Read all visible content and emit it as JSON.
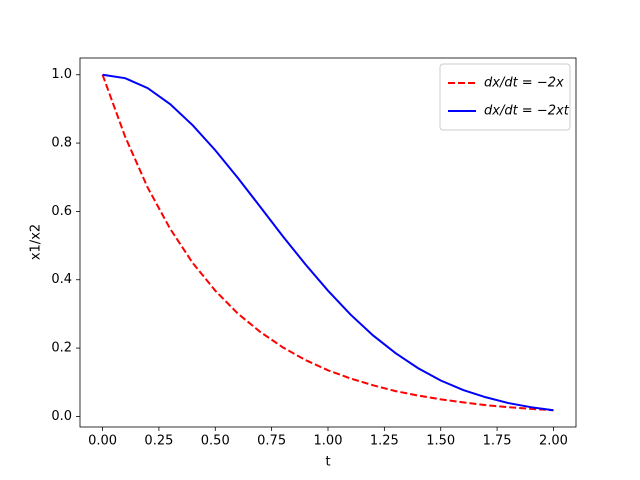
{
  "chart_data": {
    "type": "line",
    "x": [
      0,
      0.1,
      0.2,
      0.3,
      0.4,
      0.5,
      0.6,
      0.7,
      0.8,
      0.9,
      1.0,
      1.1,
      1.2,
      1.3,
      1.4,
      1.5,
      1.6,
      1.7,
      1.8,
      1.9,
      2.0
    ],
    "series": [
      {
        "name": "dx/dt = −2x",
        "color": "#ff0000",
        "dash": true,
        "values": [
          1,
          0.819,
          0.67,
          0.549,
          0.449,
          0.368,
          0.301,
          0.247,
          0.202,
          0.165,
          0.135,
          0.111,
          0.091,
          0.074,
          0.061,
          0.05,
          0.041,
          0.033,
          0.027,
          0.022,
          0.018
        ]
      },
      {
        "name": "dx/dt = −2xt",
        "color": "#0000ff",
        "dash": false,
        "values": [
          1,
          0.99,
          0.961,
          0.914,
          0.852,
          0.779,
          0.698,
          0.613,
          0.527,
          0.445,
          0.368,
          0.298,
          0.237,
          0.185,
          0.141,
          0.105,
          0.077,
          0.056,
          0.039,
          0.027,
          0.018
        ]
      }
    ],
    "xlabel": "t",
    "ylabel": "x1/x2",
    "xlim": [
      -0.1,
      2.1
    ],
    "ylim": [
      -0.031,
      1.049
    ],
    "xticks": [
      {
        "value": 0,
        "label": "0.00"
      },
      {
        "value": 0.25,
        "label": "0.25"
      },
      {
        "value": 0.5,
        "label": "0.50"
      },
      {
        "value": 0.75,
        "label": "0.75"
      },
      {
        "value": 1,
        "label": "1.00"
      },
      {
        "value": 1.25,
        "label": "1.25"
      },
      {
        "value": 1.5,
        "label": "1.50"
      },
      {
        "value": 1.75,
        "label": "1.75"
      },
      {
        "value": 2,
        "label": "2.00"
      }
    ],
    "yticks": [
      {
        "value": 0,
        "label": "0.0"
      },
      {
        "value": 0.2,
        "label": "0.2"
      },
      {
        "value": 0.4,
        "label": "0.4"
      },
      {
        "value": 0.6,
        "label": "0.6"
      },
      {
        "value": 0.8,
        "label": "0.8"
      },
      {
        "value": 1,
        "label": "1.0"
      }
    ],
    "legend": "upper right"
  }
}
